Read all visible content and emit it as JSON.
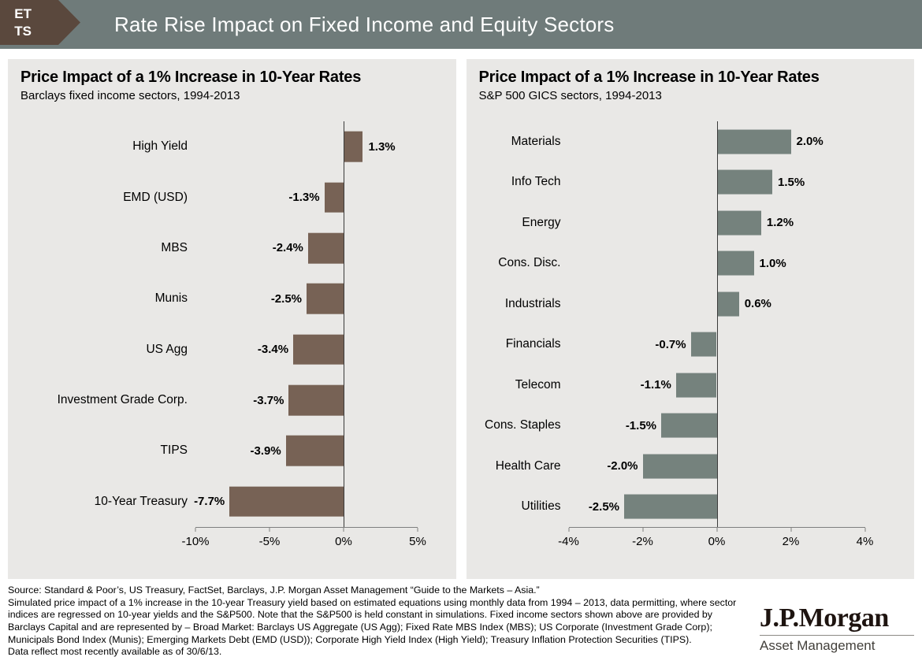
{
  "header": {
    "badge_lines": [
      "ET",
      "TS"
    ],
    "title": "Rate Rise Impact on Fixed Income and Equity Sectors"
  },
  "colors": {
    "header_bg": "#6f7b7a",
    "badge_bg": "#5a483d",
    "panel_bg": "#e9e8e6",
    "fixed_income_bar": "#776255",
    "equity_bar": "#75827d",
    "zero_line": "#3a3a3a"
  },
  "chart_data": [
    {
      "type": "bar",
      "orientation": "horizontal",
      "title": "Price Impact of a 1% Increase in 10-Year Rates",
      "subtitle": "Barclays fixed income sectors, 1994-2013",
      "categories": [
        "High Yield",
        "EMD (USD)",
        "MBS",
        "Munis",
        "US Agg",
        "Investment Grade Corp.",
        "TIPS",
        "10-Year Treasury"
      ],
      "values": [
        1.3,
        -1.3,
        -2.4,
        -2.5,
        -3.4,
        -3.7,
        -3.9,
        -7.7
      ],
      "value_labels": [
        "1.3%",
        "-1.3%",
        "-2.4%",
        "-2.5%",
        "-3.4%",
        "-3.7%",
        "-3.9%",
        "-7.7%"
      ],
      "xlim": [
        -10,
        5
      ],
      "xticks": [
        -10,
        -5,
        0,
        5
      ],
      "xtick_labels": [
        "-10%",
        "-5%",
        "0%",
        "5%"
      ],
      "bar_color": "#776255",
      "grid": false,
      "legend": false
    },
    {
      "type": "bar",
      "orientation": "horizontal",
      "title": "Price Impact of a 1% Increase in 10-Year Rates",
      "subtitle": "S&P 500 GICS sectors, 1994-2013",
      "categories": [
        "Materials",
        "Info Tech",
        "Energy",
        "Cons. Disc.",
        "Industrials",
        "Financials",
        "Telecom",
        "Cons. Staples",
        "Health Care",
        "Utilities"
      ],
      "values": [
        2.0,
        1.5,
        1.2,
        1.0,
        0.6,
        -0.7,
        -1.1,
        -1.5,
        -2.0,
        -2.5
      ],
      "value_labels": [
        "2.0%",
        "1.5%",
        "1.2%",
        "1.0%",
        "0.6%",
        "-0.7%",
        "-1.1%",
        "-1.5%",
        "-2.0%",
        "-2.5%"
      ],
      "xlim": [
        -4,
        4
      ],
      "xticks": [
        -4,
        -2,
        0,
        2,
        4
      ],
      "xtick_labels": [
        "-4%",
        "-2%",
        "0%",
        "2%",
        "4%"
      ],
      "bar_color": "#75827d",
      "grid": false,
      "legend": false
    }
  ],
  "footnotes": {
    "source": "Source: Standard & Poor’s, US Treasury, FactSet, Barclays, J.P. Morgan Asset Management “Guide to the Markets – Asia.”",
    "body": "Simulated price impact of a 1% increase in the 10-year Treasury yield based on estimated equations using monthly data from 1994 – 2013, data permitting, where sector indices are regressed on 10-year yields and the S&P500.  Note that the S&P500 is held constant in simulations. Fixed income sectors shown above are provided by Barclays Capital and are represented by – Broad Market: Barclays US Aggregate (US Agg); Fixed Rate MBS Index (MBS); US Corporate (Investment Grade Corp); Municipals Bond Index (Munis); Emerging Markets Debt (EMD (USD)); Corporate High Yield Index (High Yield); Treasury Inflation Protection Securities (TIPS).",
    "as_of": "Data reflect most recently available as of 30/6/13."
  },
  "logo": {
    "wordmark": "J.P.Morgan",
    "division": "Asset Management"
  }
}
